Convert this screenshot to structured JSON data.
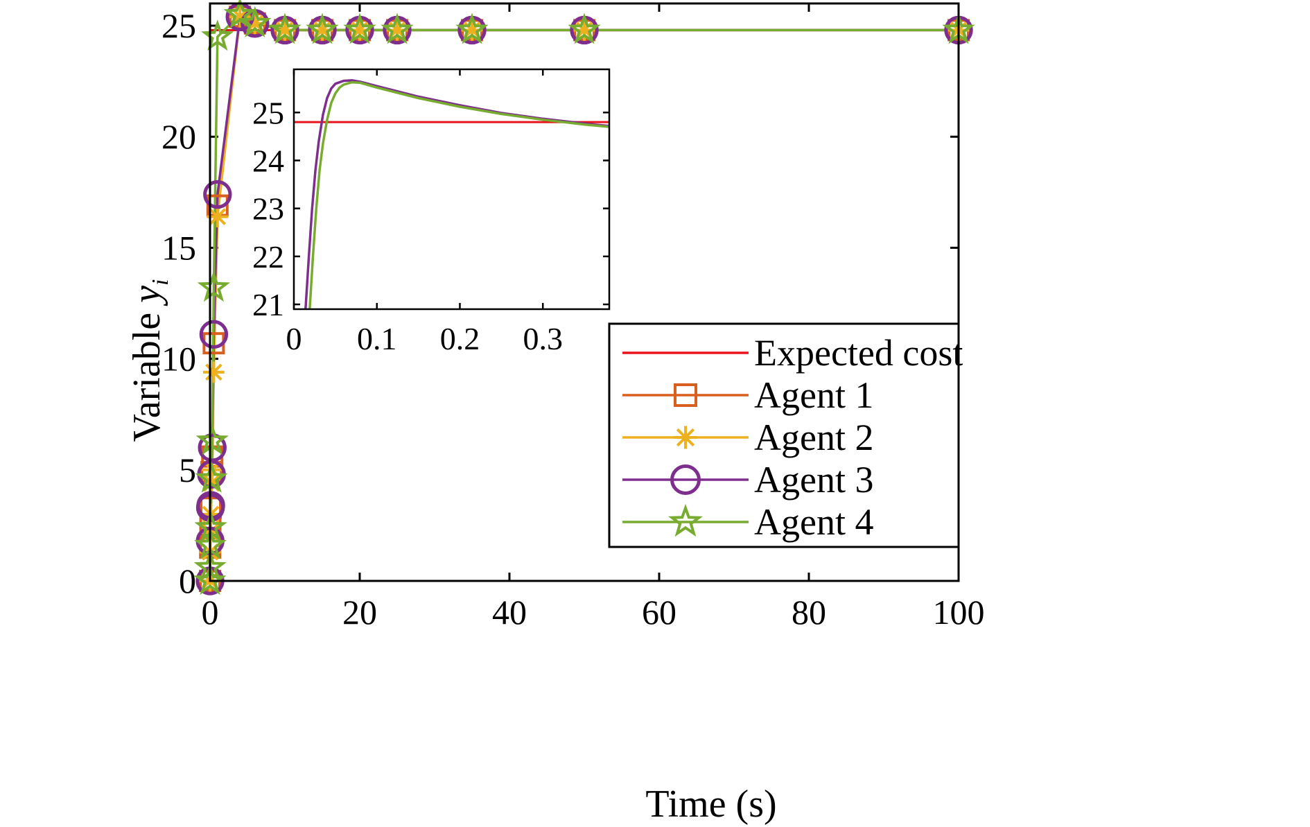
{
  "chart_data": {
    "type": "line",
    "xlabel": "Time (s)",
    "ylabel_main": "Variable ",
    "ylabel_sym": "y",
    "ylabel_sub": "i",
    "xlim": [
      0,
      100
    ],
    "ylim": [
      0,
      26
    ],
    "xticks": [
      0,
      20,
      40,
      60,
      80,
      100
    ],
    "yticks": [
      0,
      5,
      10,
      15,
      20,
      25
    ],
    "expected_cost": 24.8,
    "colors": {
      "expected": "#e8141c",
      "agent1": "#d95f1e",
      "agent2": "#edb120",
      "agent3": "#7e2f8e",
      "agent4": "#77ac30"
    },
    "legend": {
      "position": "lower-right",
      "entries": [
        {
          "key": "expected",
          "label": "Expected cost",
          "marker": "none"
        },
        {
          "key": "agent1",
          "label": "Agent 1",
          "marker": "square"
        },
        {
          "key": "agent2",
          "label": "Agent 2",
          "marker": "asterisk"
        },
        {
          "key": "agent3",
          "label": "Agent 3",
          "marker": "circle"
        },
        {
          "key": "agent4",
          "label": "Agent 4",
          "marker": "star"
        }
      ]
    },
    "series": [
      {
        "key": "agent1",
        "marker": "square",
        "x": [
          0,
          0.02,
          0.05,
          0.1,
          0.2,
          0.3,
          0.5,
          1,
          4,
          6,
          10,
          15,
          20,
          25,
          35,
          50,
          100
        ],
        "y": [
          0,
          1.5,
          2.5,
          3.3,
          4.9,
          5.6,
          10.7,
          16.9,
          25.4,
          25.1,
          24.8,
          24.8,
          24.8,
          24.8,
          24.8,
          24.8,
          24.8
        ]
      },
      {
        "key": "agent2",
        "marker": "asterisk",
        "x": [
          0,
          0.02,
          0.05,
          0.1,
          0.2,
          0.3,
          0.5,
          1,
          4,
          6,
          10,
          15,
          20,
          25,
          35,
          50,
          100
        ],
        "y": [
          0,
          1.3,
          2.2,
          3.0,
          4.4,
          5.0,
          9.4,
          16.4,
          25.4,
          25.1,
          24.8,
          24.8,
          24.8,
          24.8,
          24.8,
          24.8,
          24.8
        ]
      },
      {
        "key": "agent3",
        "marker": "circle",
        "x": [
          0,
          0.02,
          0.05,
          0.1,
          0.2,
          0.3,
          0.5,
          1,
          4,
          6,
          10,
          15,
          20,
          25,
          35,
          50,
          100
        ],
        "y": [
          0,
          1.8,
          3.3,
          3.4,
          4.8,
          6.0,
          11.1,
          17.4,
          25.4,
          25.1,
          24.8,
          24.8,
          24.8,
          24.8,
          24.8,
          24.8,
          24.8
        ]
      },
      {
        "key": "agent4",
        "marker": "star",
        "x": [
          0,
          0.02,
          0.05,
          0.1,
          0.2,
          0.3,
          0.5,
          1,
          4,
          6,
          10,
          15,
          20,
          25,
          35,
          50,
          100
        ],
        "y": [
          0,
          0.6,
          1.6,
          2.4,
          4.6,
          6.3,
          13.2,
          24.5,
          25.5,
          25.1,
          24.8,
          24.8,
          24.8,
          24.8,
          24.8,
          24.8,
          24.8
        ]
      }
    ],
    "inset": {
      "xlim": [
        0,
        0.38
      ],
      "ylim": [
        20.9,
        25.9
      ],
      "xticks": [
        0,
        0.1,
        0.2,
        0.3
      ],
      "xtick_labels": [
        "0",
        "0.1",
        "0.2",
        "0.3"
      ],
      "yticks": [
        21,
        22,
        23,
        24,
        25
      ],
      "series": [
        {
          "key": "agent3",
          "x": [
            0.014,
            0.018,
            0.022,
            0.026,
            0.03,
            0.035,
            0.04,
            0.045,
            0.05,
            0.06,
            0.07,
            0.08,
            0.1,
            0.15,
            0.2,
            0.25,
            0.3,
            0.35,
            0.38
          ],
          "y": [
            20.9,
            22.0,
            23.0,
            23.8,
            24.4,
            24.95,
            25.3,
            25.5,
            25.6,
            25.66,
            25.67,
            25.64,
            25.55,
            25.33,
            25.15,
            24.99,
            24.87,
            24.77,
            24.72
          ]
        },
        {
          "key": "agent4",
          "x": [
            0.019,
            0.023,
            0.027,
            0.031,
            0.035,
            0.04,
            0.045,
            0.05,
            0.055,
            0.06,
            0.07,
            0.08,
            0.1,
            0.15,
            0.2,
            0.25,
            0.3,
            0.35,
            0.38
          ],
          "y": [
            20.9,
            22.0,
            23.0,
            23.8,
            24.35,
            24.85,
            25.2,
            25.4,
            25.52,
            25.58,
            25.63,
            25.62,
            25.52,
            25.3,
            25.12,
            24.97,
            24.85,
            24.75,
            24.7
          ]
        }
      ]
    }
  }
}
